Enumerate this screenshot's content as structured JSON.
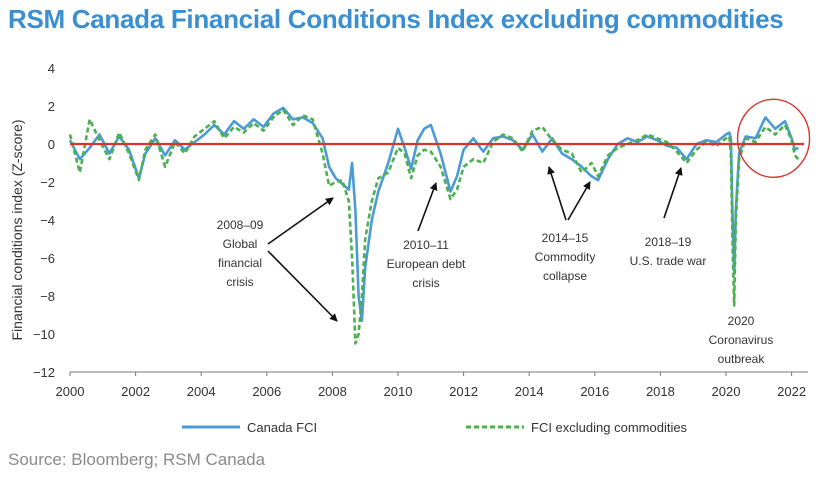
{
  "title": "RSM Canada Financial Conditions Index excluding commodities",
  "source": "Source: Bloomberg; RSM Canada",
  "chart_data": {
    "type": "line",
    "title": "RSM Canada Financial Conditions Index excluding commodities",
    "ylabel": "Financial conditions index (Z-score)",
    "xlabel": "",
    "xlim": [
      2000,
      2022.5
    ],
    "ylim": [
      -12,
      4
    ],
    "x_ticks": [
      "2000",
      "2002",
      "2004",
      "2006",
      "2008",
      "2010",
      "2012",
      "2014",
      "2016",
      "2018",
      "2020",
      "2022"
    ],
    "y_ticks": [
      "4",
      "2",
      "0",
      "−2",
      "−4",
      "−6",
      "−8",
      "−10",
      "−12"
    ],
    "grid": false,
    "legend_position": "bottom",
    "zero_line_color": "#d9342b",
    "series": [
      {
        "name": "Canada FCI",
        "color": "#4a9bd6",
        "style": "solid",
        "x": [
          2000.0,
          2000.3,
          2000.6,
          2000.9,
          2001.2,
          2001.5,
          2001.8,
          2002.1,
          2002.3,
          2002.6,
          2002.9,
          2003.2,
          2003.5,
          2003.8,
          2004.1,
          2004.4,
          2004.7,
          2005.0,
          2005.3,
          2005.6,
          2005.9,
          2006.2,
          2006.5,
          2006.8,
          2007.1,
          2007.4,
          2007.7,
          2007.9,
          2008.1,
          2008.3,
          2008.5,
          2008.6,
          2008.7,
          2008.8,
          2008.9,
          2009.0,
          2009.2,
          2009.4,
          2009.7,
          2010.0,
          2010.2,
          2010.4,
          2010.6,
          2010.8,
          2011.0,
          2011.3,
          2011.6,
          2011.8,
          2012.0,
          2012.3,
          2012.6,
          2012.9,
          2013.2,
          2013.5,
          2013.8,
          2014.1,
          2014.4,
          2014.7,
          2015.0,
          2015.3,
          2015.6,
          2015.9,
          2016.1,
          2016.4,
          2016.7,
          2017.0,
          2017.3,
          2017.6,
          2017.9,
          2018.2,
          2018.5,
          2018.8,
          2019.1,
          2019.4,
          2019.7,
          2020.0,
          2020.1,
          2020.15,
          2020.2,
          2020.25,
          2020.3,
          2020.4,
          2020.6,
          2020.9,
          2021.2,
          2021.5,
          2021.8,
          2022.0,
          2022.1,
          2022.2
        ],
        "y": [
          0.2,
          -0.8,
          -0.2,
          0.5,
          -0.5,
          0.4,
          -0.3,
          -1.8,
          -0.5,
          0.3,
          -0.6,
          0.2,
          -0.3,
          0.1,
          0.5,
          1.0,
          0.5,
          1.2,
          0.8,
          1.3,
          0.9,
          1.6,
          1.9,
          1.3,
          1.4,
          1.1,
          0.3,
          -1.2,
          -1.8,
          -2.1,
          -2.4,
          -1.0,
          -3.5,
          -8.0,
          -9.3,
          -6.5,
          -4.0,
          -2.5,
          -1.0,
          0.8,
          -0.2,
          -1.3,
          0.2,
          0.8,
          1.0,
          -0.5,
          -2.5,
          -1.7,
          -0.3,
          0.3,
          -0.4,
          0.3,
          0.4,
          0.2,
          -0.3,
          0.5,
          -0.4,
          0.3,
          -0.5,
          -0.8,
          -1.2,
          -1.7,
          -1.9,
          -0.8,
          0.0,
          0.3,
          0.1,
          0.4,
          0.2,
          -0.1,
          -0.2,
          -0.8,
          0.0,
          0.2,
          0.1,
          0.5,
          0.6,
          0.3,
          -4.0,
          -6.8,
          -3.5,
          -0.5,
          0.4,
          0.3,
          1.4,
          0.8,
          1.2,
          0.3,
          -0.3,
          -0.2
        ]
      },
      {
        "name": "FCI excluding commodities",
        "color": "#4caf50",
        "style": "dashed",
        "x": [
          2000.0,
          2000.3,
          2000.6,
          2000.9,
          2001.2,
          2001.5,
          2001.8,
          2002.1,
          2002.3,
          2002.6,
          2002.9,
          2003.2,
          2003.5,
          2003.8,
          2004.1,
          2004.4,
          2004.7,
          2005.0,
          2005.3,
          2005.6,
          2005.9,
          2006.2,
          2006.5,
          2006.8,
          2007.1,
          2007.4,
          2007.7,
          2007.9,
          2008.1,
          2008.3,
          2008.5,
          2008.6,
          2008.7,
          2008.8,
          2008.9,
          2009.0,
          2009.2,
          2009.4,
          2009.7,
          2010.0,
          2010.2,
          2010.4,
          2010.6,
          2010.8,
          2011.0,
          2011.3,
          2011.6,
          2011.8,
          2012.0,
          2012.3,
          2012.6,
          2012.9,
          2013.2,
          2013.5,
          2013.8,
          2014.1,
          2014.4,
          2014.7,
          2015.0,
          2015.3,
          2015.6,
          2015.9,
          2016.1,
          2016.4,
          2016.7,
          2017.0,
          2017.3,
          2017.6,
          2017.9,
          2018.2,
          2018.5,
          2018.8,
          2019.1,
          2019.4,
          2019.7,
          2020.0,
          2020.1,
          2020.15,
          2020.2,
          2020.25,
          2020.3,
          2020.4,
          2020.6,
          2020.9,
          2021.2,
          2021.5,
          2021.8,
          2022.0,
          2022.1,
          2022.2
        ],
        "y": [
          0.5,
          -1.5,
          1.3,
          0.2,
          -0.8,
          0.6,
          -0.5,
          -1.9,
          -0.3,
          0.5,
          -1.2,
          0.1,
          -0.5,
          0.4,
          0.8,
          1.2,
          0.3,
          0.9,
          0.6,
          1.1,
          0.7,
          1.4,
          1.8,
          1.0,
          1.5,
          1.3,
          -0.5,
          -2.2,
          -2.0,
          -1.9,
          -3.0,
          -6.0,
          -10.5,
          -10.0,
          -8.0,
          -5.0,
          -3.0,
          -1.8,
          -1.5,
          -0.2,
          -0.5,
          -1.8,
          -0.6,
          -0.3,
          -0.4,
          -1.2,
          -2.9,
          -2.4,
          -1.2,
          -0.8,
          -1.0,
          0.1,
          0.5,
          0.3,
          -0.4,
          0.7,
          0.9,
          0.2,
          -0.3,
          -0.5,
          -1.5,
          -1.0,
          -1.7,
          -0.6,
          -0.2,
          0.0,
          0.2,
          0.5,
          0.3,
          0.1,
          -0.4,
          -1.0,
          -0.3,
          0.1,
          -0.1,
          0.3,
          0.4,
          -0.5,
          -5.5,
          -8.5,
          -4.0,
          -0.8,
          0.3,
          0.1,
          0.9,
          0.5,
          1.0,
          0.2,
          -0.6,
          -0.8
        ]
      }
    ],
    "annotations": [
      {
        "text": [
          "2008–09",
          "Global",
          "financial",
          "crisis"
        ]
      },
      {
        "text": [
          "2010–11",
          "European debt",
          "crisis"
        ]
      },
      {
        "text": [
          "2014–15",
          "Commodity",
          "collapse"
        ]
      },
      {
        "text": [
          "2018–19",
          "U.S. trade war"
        ]
      },
      {
        "text": [
          "2020",
          "Coronavirus",
          "outbreak"
        ]
      }
    ],
    "highlight_circle_color": "#d9342b"
  }
}
